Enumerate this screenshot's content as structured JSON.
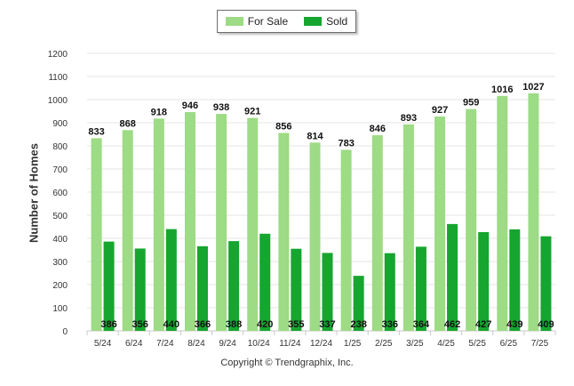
{
  "chart_data": {
    "type": "bar",
    "categories": [
      "5/24",
      "6/24",
      "7/24",
      "8/24",
      "9/24",
      "10/24",
      "11/24",
      "12/24",
      "1/25",
      "2/25",
      "3/25",
      "4/25",
      "5/25",
      "6/25",
      "7/25"
    ],
    "series": [
      {
        "name": "For Sale",
        "color": "#9ddb85",
        "values": [
          833,
          868,
          918,
          946,
          938,
          921,
          856,
          814,
          783,
          846,
          893,
          927,
          959,
          1016,
          1027
        ]
      },
      {
        "name": "Sold",
        "color": "#16a52f",
        "values": [
          386,
          356,
          440,
          366,
          388,
          420,
          355,
          337,
          238,
          336,
          364,
          462,
          427,
          439,
          409
        ]
      }
    ],
    "ylabel": "Number of Homes",
    "ylim": [
      0,
      1200
    ],
    "yticks": [
      0,
      100,
      200,
      300,
      400,
      500,
      600,
      700,
      800,
      900,
      1000,
      1100,
      1200
    ],
    "grid": true,
    "legend_position": "top-center"
  },
  "footer": {
    "copyright": "Copyright © Trendgraphix, Inc."
  }
}
